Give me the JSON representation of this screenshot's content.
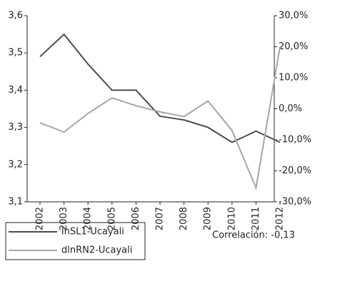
{
  "chart_data": {
    "type": "line",
    "categories": [
      "2002",
      "2003",
      "2004",
      "2005",
      "2006",
      "2007",
      "2008",
      "2009",
      "2010",
      "2011",
      "2012"
    ],
    "series": [
      {
        "name": "lnSL1-Ucayali",
        "color": "#4d4d4d",
        "values": [
          3.49,
          3.55,
          3.47,
          3.4,
          3.4,
          3.33,
          3.32,
          3.3,
          3.26,
          3.29,
          3.26
        ]
      },
      {
        "name": "dlnRN2-Ucayali",
        "color": "#a6a6a6",
        "axis": "y2",
        "values": [
          -4.5,
          -7.5,
          -1.5,
          3.5,
          1.0,
          -1.0,
          -2.5,
          2.5,
          -7.0,
          -25.5,
          20.0
        ]
      }
    ],
    "ylim": [
      3.1,
      3.6
    ],
    "yticks": [
      {
        "value": 3.1,
        "label": "3,1"
      },
      {
        "value": 3.2,
        "label": "3,2"
      },
      {
        "value": 3.3,
        "label": "3,3"
      },
      {
        "value": 3.4,
        "label": "3,4"
      },
      {
        "value": 3.5,
        "label": "3,5"
      },
      {
        "value": 3.6,
        "label": "3,6"
      }
    ],
    "y2lim": [
      -30,
      30
    ],
    "y2ticks": [
      {
        "value": -30,
        "label": "-30,0%"
      },
      {
        "value": -20,
        "label": "-20,0%"
      },
      {
        "value": -10,
        "label": "-10,0%"
      },
      {
        "value": 0,
        "label": "0,0%"
      },
      {
        "value": 10,
        "label": "10,0%"
      },
      {
        "value": 20,
        "label": "20,0%"
      },
      {
        "value": 30,
        "label": "30,0%"
      }
    ],
    "annotation": "Correlación: -0,13",
    "legend": "bottom-left"
  }
}
